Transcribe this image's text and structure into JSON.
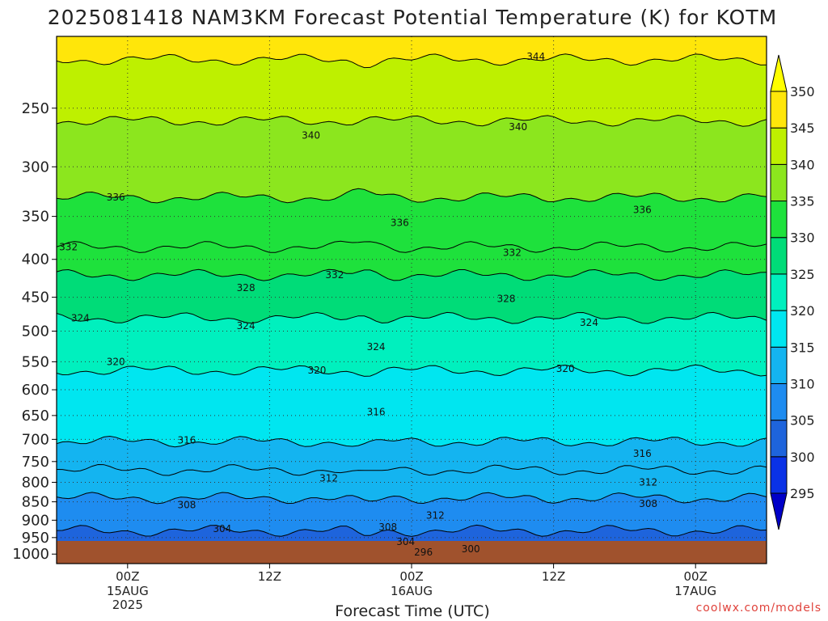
{
  "chart_data": {
    "type": "heatmap",
    "title": "2025081418 NAM3KM Forecast Potential Temperature (K) for KOTM",
    "xlabel": "Forecast Time (UTC)",
    "ylabel": "",
    "y_axis": {
      "scale": "log",
      "inverted": true,
      "units": "hPa",
      "range": [
        200,
        1030
      ],
      "ticks": [
        250,
        300,
        350,
        400,
        450,
        500,
        550,
        600,
        650,
        700,
        750,
        800,
        850,
        900,
        950,
        1000
      ]
    },
    "x_axis": {
      "range_hours_from_start": [
        0,
        60
      ],
      "ticks": [
        {
          "label": "00Z",
          "sublabels": [
            "15AUG",
            "2025"
          ],
          "valid_time": "2025-08-15 00Z"
        },
        {
          "label": "12Z",
          "sublabels": [],
          "valid_time": "2025-08-15 12Z"
        },
        {
          "label": "00Z",
          "sublabels": [
            "16AUG"
          ],
          "valid_time": "2025-08-16 00Z"
        },
        {
          "label": "12Z",
          "sublabels": [],
          "valid_time": "2025-08-16 12Z"
        },
        {
          "label": "00Z",
          "sublabels": [
            "17AUG"
          ],
          "valid_time": "2025-08-17 00Z"
        }
      ]
    },
    "grid": true,
    "colorbar": {
      "levels": [
        295,
        300,
        305,
        310,
        315,
        320,
        325,
        330,
        335,
        340,
        345,
        350
      ],
      "colors": [
        "#0000c8",
        "#0a32e6",
        "#1e64dc",
        "#1e8cf0",
        "#14b4f0",
        "#00e6f0",
        "#00f0be",
        "#00dc78",
        "#1ee13c",
        "#8ce61e",
        "#bef000",
        "#ffe60a",
        "#ffff00"
      ],
      "placement": "right"
    },
    "contours": [
      {
        "value": 296,
        "label": "296",
        "pressure": 1000
      },
      {
        "value": 300,
        "label": "300",
        "pressure": 995
      },
      {
        "value": 304,
        "label": "304",
        "pressure": 930
      },
      {
        "value": 308,
        "label": "308",
        "pressure": 840
      },
      {
        "value": 312,
        "label": "312",
        "pressure": 770
      },
      {
        "value": 316,
        "label": "316",
        "pressure": 705
      },
      {
        "value": 320,
        "label": "320",
        "pressure": 565
      },
      {
        "value": 324,
        "label": "324",
        "pressure": 480
      },
      {
        "value": 328,
        "label": "328",
        "pressure": 420
      },
      {
        "value": 332,
        "label": "332",
        "pressure": 385
      },
      {
        "value": 336,
        "label": "336",
        "pressure": 330
      },
      {
        "value": 340,
        "label": "340",
        "pressure": 260
      },
      {
        "value": 344,
        "label": "344",
        "pressure": 215
      }
    ],
    "contour_labels": [
      {
        "label": "344",
        "hour": 40.5,
        "pressure": 213
      },
      {
        "label": "340",
        "hour": 21.5,
        "pressure": 272
      },
      {
        "label": "340",
        "hour": 39.0,
        "pressure": 265
      },
      {
        "label": "336",
        "hour": 5.0,
        "pressure": 330
      },
      {
        "label": "336",
        "hour": 29.0,
        "pressure": 357
      },
      {
        "label": "336",
        "hour": 49.5,
        "pressure": 343
      },
      {
        "label": "332",
        "hour": 1.0,
        "pressure": 385
      },
      {
        "label": "332",
        "hour": 23.5,
        "pressure": 420
      },
      {
        "label": "332",
        "hour": 38.5,
        "pressure": 392
      },
      {
        "label": "328",
        "hour": 16.0,
        "pressure": 437
      },
      {
        "label": "328",
        "hour": 38.0,
        "pressure": 452
      },
      {
        "label": "324",
        "hour": 2.0,
        "pressure": 480
      },
      {
        "label": "324",
        "hour": 16.0,
        "pressure": 492
      },
      {
        "label": "324",
        "hour": 27.0,
        "pressure": 525
      },
      {
        "label": "324",
        "hour": 45.0,
        "pressure": 487
      },
      {
        "label": "320",
        "hour": 5.0,
        "pressure": 550
      },
      {
        "label": "320",
        "hour": 22.0,
        "pressure": 565
      },
      {
        "label": "320",
        "hour": 43.0,
        "pressure": 562
      },
      {
        "label": "316",
        "hour": 27.0,
        "pressure": 643
      },
      {
        "label": "316",
        "hour": 11.0,
        "pressure": 702
      },
      {
        "label": "316",
        "hour": 49.5,
        "pressure": 732
      },
      {
        "label": "312",
        "hour": 23.0,
        "pressure": 790
      },
      {
        "label": "312",
        "hour": 50.0,
        "pressure": 800
      },
      {
        "label": "312",
        "hour": 32.0,
        "pressure": 887
      },
      {
        "label": "308",
        "hour": 11.0,
        "pressure": 858
      },
      {
        "label": "308",
        "hour": 50.0,
        "pressure": 855
      },
      {
        "label": "308",
        "hour": 28.0,
        "pressure": 920
      },
      {
        "label": "304",
        "hour": 14.0,
        "pressure": 925
      },
      {
        "label": "304",
        "hour": 29.5,
        "pressure": 962
      },
      {
        "label": "300",
        "hour": 35.0,
        "pressure": 985
      },
      {
        "label": "296",
        "hour": 31.0,
        "pressure": 995
      }
    ],
    "ground_color": "#a0522d"
  },
  "credit": "coolwx.com/models"
}
